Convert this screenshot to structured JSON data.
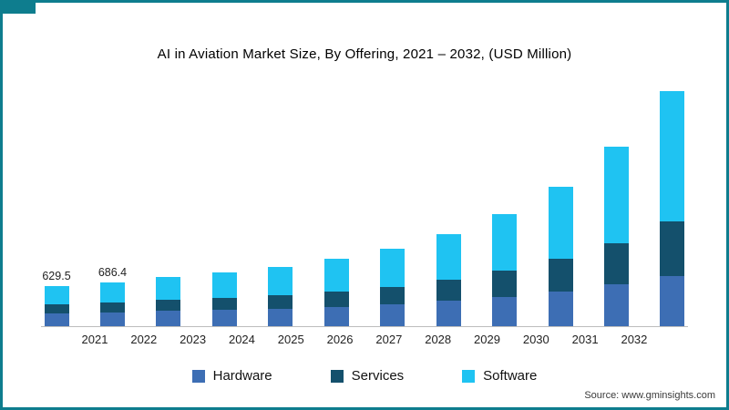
{
  "title": "AI in Aviation Market Size, By Offering, 2021 – 2032, (USD Million)",
  "source_text": "Source: www.gminsights.com",
  "accent_color": "#0E7D8E",
  "chart_data": {
    "type": "bar",
    "stacked": true,
    "title": "AI in Aviation Market Size, By Offering, 2021 – 2032, (USD Million)",
    "xlabel": "",
    "ylabel": "USD Million",
    "ylim": [
      0,
      4000
    ],
    "grid": false,
    "legend_position": "bottom",
    "categories": [
      "2021",
      "2022",
      "2023",
      "2024",
      "2025",
      "2026",
      "2027",
      "2028",
      "2029",
      "2030",
      "2031",
      "2032"
    ],
    "series": [
      {
        "name": "Hardware",
        "color": "#3D6EB4",
        "values": [
          200,
          215,
          235,
          255,
          275,
          305,
          340,
          395,
          460,
          545,
          650,
          780
        ]
      },
      {
        "name": "Services",
        "color": "#14506C",
        "values": [
          140,
          155,
          175,
          190,
          210,
          240,
          275,
          330,
          400,
          500,
          640,
          850
        ]
      },
      {
        "name": "Software",
        "color": "#1FC3F2",
        "values": [
          289.5,
          316.4,
          360,
          395,
          435,
          505,
          585,
          715,
          880,
          1125,
          1500,
          2030
        ]
      }
    ],
    "totals": [
      629.5,
      686.4,
      770,
      840,
      920,
      1050,
      1200,
      1440,
      1740,
      2170,
      2790,
      3660
    ],
    "bar_labels": [
      "629.5",
      "686.4",
      null,
      null,
      null,
      null,
      null,
      null,
      null,
      null,
      null,
      null
    ]
  },
  "legend": {
    "items": [
      {
        "label": "Hardware"
      },
      {
        "label": "Services"
      },
      {
        "label": "Software"
      }
    ]
  }
}
